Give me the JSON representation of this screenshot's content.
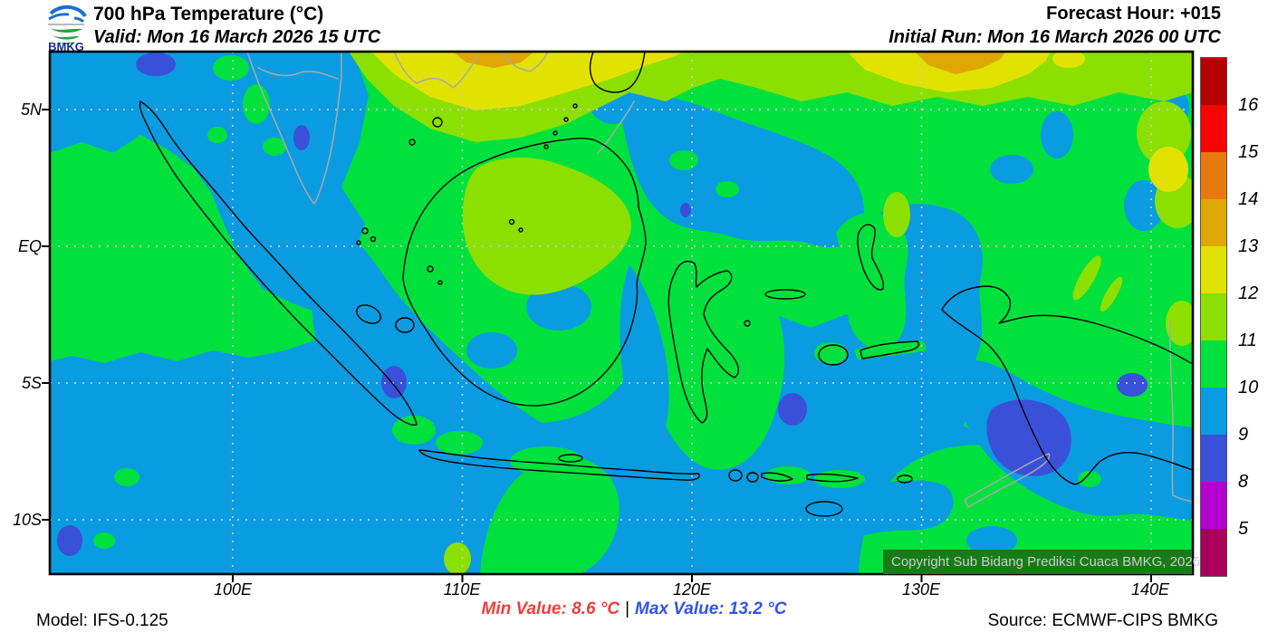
{
  "header": {
    "title": "700 hPa Temperature (°C)",
    "valid": "Valid: Mon 16 March 2026 15 UTC",
    "forecast_hour": "Forecast Hour: +015",
    "initial_run": "Initial Run: Mon 16 March 2026 00 UTC",
    "logo_text": "BMKG"
  },
  "map": {
    "copyright": "Copyright Sub Bidang Prediksi Cuaca BMKG, 2026",
    "lat_labels": [
      "5N",
      "EQ",
      "5S",
      "10S"
    ],
    "lon_labels": [
      "100E",
      "110E",
      "120E",
      "130E",
      "140E"
    ]
  },
  "colorbar": {
    "units": "°C",
    "segments": [
      {
        "color": "#b50000",
        "label": "16"
      },
      {
        "color": "#f60400",
        "label": "15"
      },
      {
        "color": "#e8790e",
        "label": "14"
      },
      {
        "color": "#dfa800",
        "label": "13"
      },
      {
        "color": "#e2e200",
        "label": "12"
      },
      {
        "color": "#8ce000",
        "label": "11"
      },
      {
        "color": "#00e13e",
        "label": "10"
      },
      {
        "color": "#0a9ce1",
        "label": "9"
      },
      {
        "color": "#3a50d9",
        "label": "8"
      },
      {
        "color": "#b400d1",
        "label": "5"
      },
      {
        "color": "#a8005c",
        "label": null
      }
    ]
  },
  "footer": {
    "model": "Model: IFS-0.125",
    "min_text": "Min Value: 8.6 °C",
    "separator": "|",
    "max_text": "Max Value: 13.2 °C",
    "source": "Source: ECMWF-CIPS BMKG"
  },
  "palette": {
    "sea9": "#0a9ce1",
    "green10": "#00e13e",
    "ygreen11": "#8ce000",
    "yellow12": "#e2e200",
    "gold13": "#dfa800",
    "royal8": "#3a50d9",
    "minred": "#ee3e3e",
    "maxblue": "#3353e6"
  },
  "chart_data": {
    "type": "heatmap",
    "title": "700 hPa Temperature (°C)",
    "scale_boundary_values": [
      16,
      15,
      14,
      13,
      12,
      11,
      10,
      9,
      8,
      5
    ],
    "units": "°C",
    "min_value": 8.6,
    "max_value": 13.2,
    "lat_ticks": [
      "5N",
      "EQ",
      "5S",
      "10S"
    ],
    "lon_ticks": [
      "100E",
      "110E",
      "120E",
      "130E",
      "140E"
    ],
    "model": "IFS-0.125",
    "source": "ECMWF-CIPS BMKG",
    "forecast_hour": "+015",
    "valid_time": "Mon 16 March 2026 15 UTC",
    "initial_run": "Mon 16 March 2026 00 UTC"
  }
}
